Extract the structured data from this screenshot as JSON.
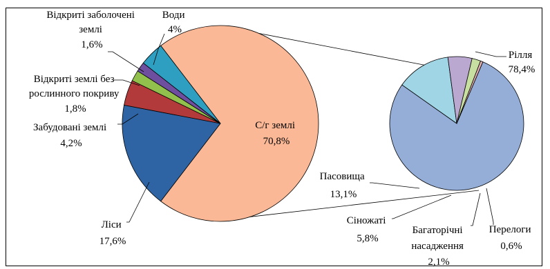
{
  "chart_data": {
    "type": "pie",
    "title": "",
    "main_pie": {
      "slices": [
        {
          "label": "С/г землі",
          "value_label": "70,8%",
          "value": 70.8,
          "color": "#FBB896"
        },
        {
          "label": "Ліси",
          "value_label": "17,6%",
          "value": 17.6,
          "color": "#2E64A4"
        },
        {
          "label": "Забудовані землі",
          "value_label": "4,2%",
          "value": 4.2,
          "color": "#B33A3A"
        },
        {
          "label": "Відкриті землі без рослинного покриву",
          "value_label": "1,8%",
          "value": 1.8,
          "color": "#92C04C"
        },
        {
          "label": "Відкриті заболочені землі",
          "value_label": "1,6%",
          "value": 1.6,
          "color": "#6E4E9E"
        },
        {
          "label": "Води",
          "value_label": "4%",
          "value": 4.0,
          "color": "#2E9FC0"
        }
      ]
    },
    "secondary_pie": {
      "of_slice": "С/г землі",
      "slices": [
        {
          "label": "Рілля",
          "value_label": "78,4%",
          "value": 78.4,
          "color": "#94AED8"
        },
        {
          "label": "Пасовища",
          "value_label": "13,1%",
          "value": 13.1,
          "color": "#9FD5E4"
        },
        {
          "label": "Сіножаті",
          "value_label": "5,8%",
          "value": 5.8,
          "color": "#BBA8D0"
        },
        {
          "label": "Багаторічні насадження",
          "value_label": "2,1%",
          "value": 2.1,
          "color": "#C7DFA0"
        },
        {
          "label": "Перелоги",
          "value_label": "0,6%",
          "value": 0.6,
          "color": "#E3AFAF"
        }
      ]
    },
    "labels": {
      "main": {
        "agri": [
          "С/г землі",
          "70,8%"
        ],
        "forest": [
          "Ліси",
          "17,6%"
        ],
        "built": [
          "Забудовані землі",
          "4,2%"
        ],
        "bare": [
          "Відкриті землі без",
          "рослинного покриву",
          "1,8%"
        ],
        "wet": [
          "Відкриті заболочені",
          "землі",
          "1,6%"
        ],
        "water": [
          "Води",
          "4%"
        ]
      },
      "secondary": {
        "arable": [
          "Рілля",
          "78,4%"
        ],
        "pasture": [
          "Пасовища",
          "13,1%"
        ],
        "hay": [
          "Сіножаті",
          "5,8%"
        ],
        "perennial": [
          "Багаторічні",
          "насадження",
          "2,1%"
        ],
        "fallow": [
          "Перелоги",
          "0,6%"
        ]
      }
    }
  }
}
